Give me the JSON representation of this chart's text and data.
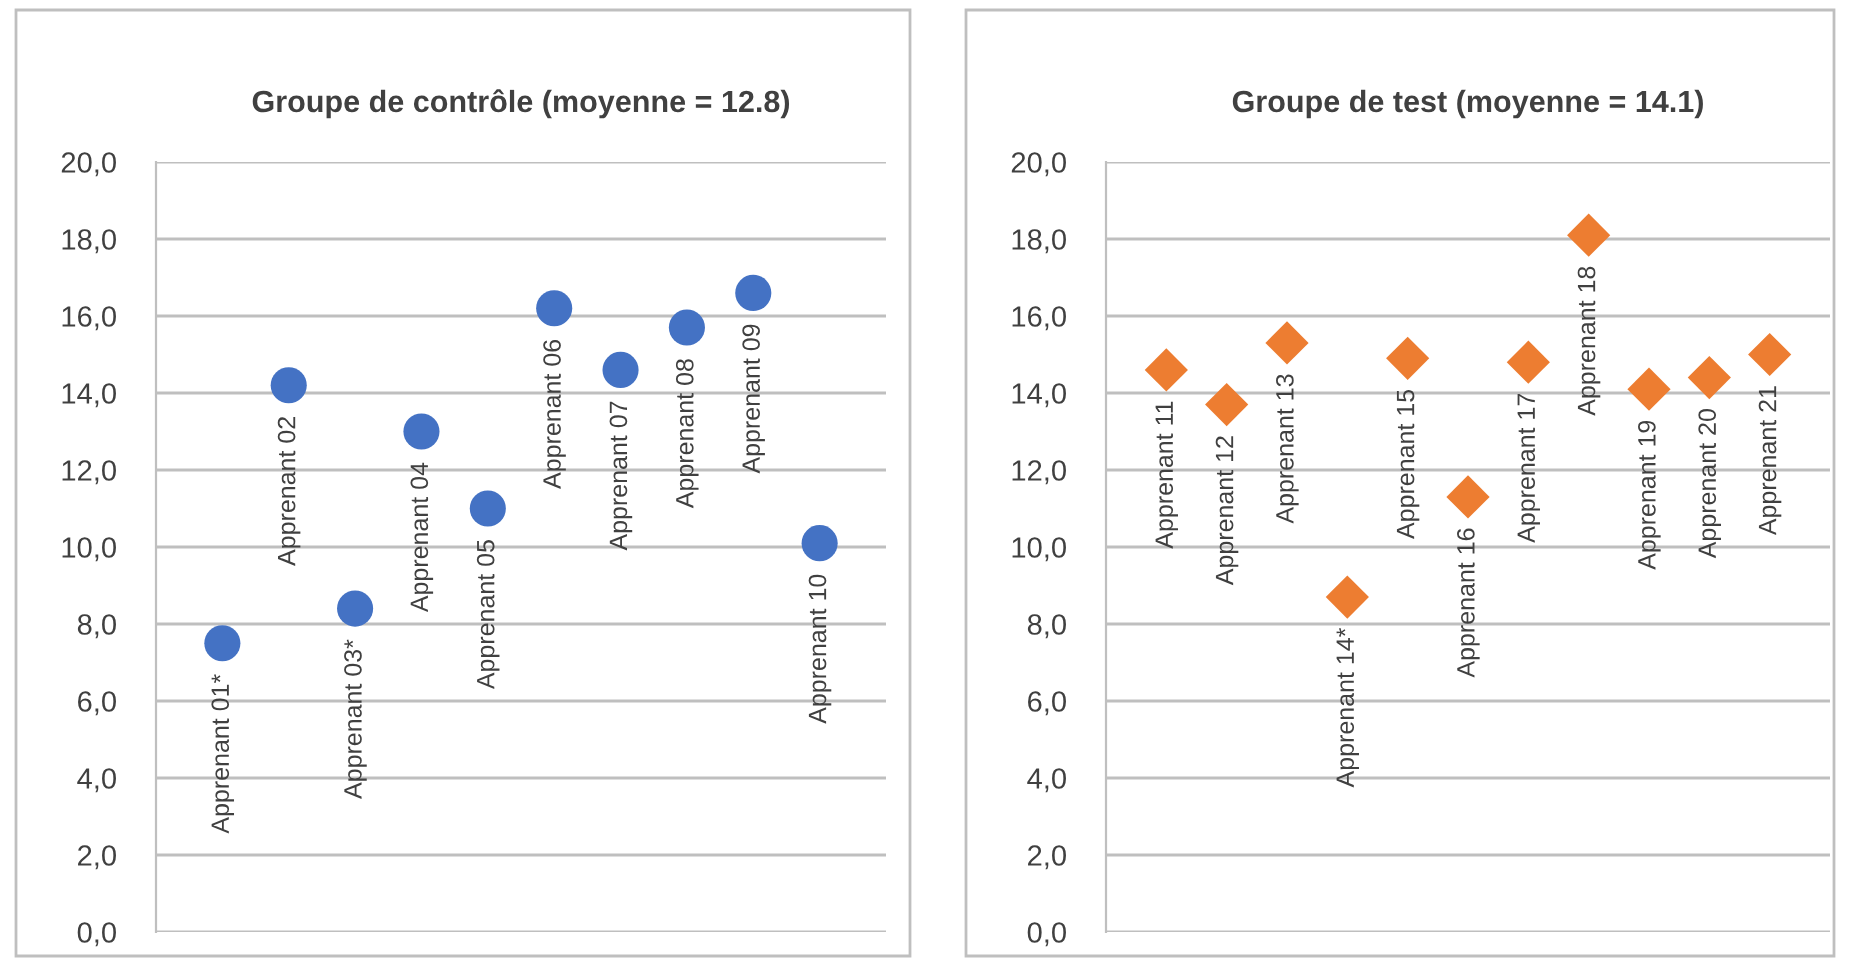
{
  "chart_data": [
    {
      "type": "scatter",
      "title": "Groupe de contrôle (moyenne = 12.8)",
      "categories": [
        "Apprenant 01*",
        "Apprenant 02",
        "Apprenant 03*",
        "Apprenant 04",
        "Apprenant 05",
        "Apprenant 06",
        "Apprenant 07",
        "Apprenant 08",
        "Apprenant 09",
        "Apprenant 10"
      ],
      "series": [
        {
          "color": "#4472c4",
          "values": [
            7.5,
            14.2,
            8.4,
            13.0,
            11.0,
            16.2,
            14.6,
            15.7,
            16.6,
            10.1
          ]
        }
      ],
      "marker": "circle",
      "ylim": [
        0,
        20
      ],
      "yticks": [
        {
          "value": 0,
          "label": "0,0"
        },
        {
          "value": 2,
          "label": "2,0"
        },
        {
          "value": 4,
          "label": "4,0"
        },
        {
          "value": 6,
          "label": "6,0"
        },
        {
          "value": 8,
          "label": "8,0"
        },
        {
          "value": 10,
          "label": "10,0"
        },
        {
          "value": 12,
          "label": "12,0"
        },
        {
          "value": 14,
          "label": "14,0"
        },
        {
          "value": 16,
          "label": "16,0"
        },
        {
          "value": 18,
          "label": "18,0"
        },
        {
          "value": 20,
          "label": "20,0"
        }
      ],
      "grid": "y"
    },
    {
      "type": "scatter",
      "title": "Groupe de test (moyenne = 14.1)",
      "categories": [
        "Apprenant 11",
        "Apprenant 12",
        "Apprenant 13",
        "Apprenant 14*",
        "Apprenant 15",
        "Apprenant 16",
        "Apprenant 17",
        "Apprenant 18",
        "Apprenant 19",
        "Apprenant 20",
        "Apprenant 21"
      ],
      "series": [
        {
          "color": "#ed7d31",
          "values": [
            14.6,
            13.7,
            15.3,
            8.7,
            14.9,
            11.3,
            14.8,
            18.1,
            14.1,
            14.4,
            15.0
          ]
        }
      ],
      "marker": "diamond",
      "ylim": [
        0,
        20
      ],
      "yticks": [
        {
          "value": 0,
          "label": "0,0"
        },
        {
          "value": 2,
          "label": "2,0"
        },
        {
          "value": 4,
          "label": "4,0"
        },
        {
          "value": 6,
          "label": "6,0"
        },
        {
          "value": 8,
          "label": "8,0"
        },
        {
          "value": 10,
          "label": "10,0"
        },
        {
          "value": 12,
          "label": "12,0"
        },
        {
          "value": 14,
          "label": "14,0"
        },
        {
          "value": 16,
          "label": "16,0"
        },
        {
          "value": 18,
          "label": "18,0"
        },
        {
          "value": 20,
          "label": "20,0"
        }
      ],
      "grid": "y"
    }
  ]
}
